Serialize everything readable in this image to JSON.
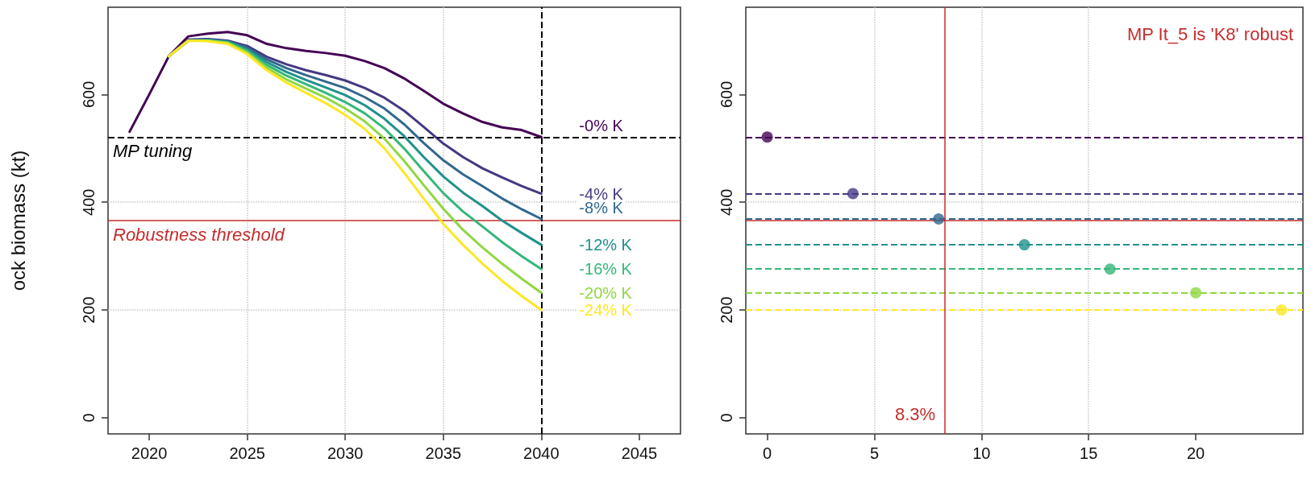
{
  "chart_data": [
    {
      "type": "line",
      "ylabel": "ock biomass (kt)",
      "x": [
        2019,
        2020,
        2021,
        2022,
        2023,
        2024,
        2025,
        2026,
        2027,
        2028,
        2029,
        2030,
        2031,
        2032,
        2033,
        2034,
        2035,
        2036,
        2037,
        2038,
        2039,
        2040
      ],
      "series": [
        {
          "name": "-0% K",
          "color": "#440154",
          "values": [
            531,
            600,
            671,
            708,
            713,
            716,
            710,
            694,
            686,
            681,
            677,
            672,
            662,
            649,
            630,
            607,
            583,
            565,
            549,
            539,
            534,
            521
          ]
        },
        {
          "name": "-4% K",
          "color": "#443983",
          "values": [
            null,
            null,
            671,
            702,
            703,
            700,
            690,
            670,
            656,
            645,
            636,
            626,
            612,
            594,
            570,
            540,
            509,
            484,
            463,
            446,
            430,
            416
          ]
        },
        {
          "name": "-8% K",
          "color": "#31688e",
          "values": [
            null,
            null,
            671,
            701,
            702,
            699,
            687,
            665,
            649,
            636,
            624,
            612,
            595,
            574,
            545,
            510,
            478,
            452,
            430,
            407,
            387,
            369
          ]
        },
        {
          "name": "-12% K",
          "color": "#21918c",
          "values": [
            null,
            null,
            671,
            700,
            701,
            698,
            684,
            660,
            642,
            627,
            613,
            599,
            580,
            555,
            523,
            484,
            448,
            418,
            393,
            366,
            343,
            321
          ]
        },
        {
          "name": "-16% K",
          "color": "#35b779",
          "values": [
            null,
            null,
            671,
            700,
            700,
            697,
            681,
            655,
            635,
            619,
            603,
            586,
            565,
            537,
            500,
            458,
            417,
            383,
            355,
            326,
            300,
            276
          ]
        },
        {
          "name": "-20% K",
          "color": "#90d743",
          "values": [
            null,
            null,
            671,
            700,
            700,
            696,
            678,
            650,
            628,
            611,
            594,
            574,
            550,
            518,
            477,
            432,
            388,
            349,
            316,
            286,
            258,
            232
          ]
        },
        {
          "name": "-24% K",
          "color": "#fde725",
          "values": [
            null,
            null,
            671,
            700,
            699,
            694,
            675,
            645,
            622,
            603,
            584,
            562,
            536,
            500,
            455,
            407,
            360,
            321,
            286,
            254,
            226,
            200
          ]
        }
      ],
      "xlim": [
        2017.9,
        2047.1
      ],
      "xticks": [
        2020,
        2025,
        2030,
        2035,
        2040,
        2045
      ],
      "ylim": [
        -30,
        762
      ],
      "yticks": [
        0,
        200,
        400,
        600
      ],
      "grid": true,
      "marker": "none",
      "line_style": "solid",
      "ref_lines": [
        {
          "axis": "y",
          "value": 521,
          "label": "MP tuning",
          "color": "#000000",
          "line_style": "dashed"
        },
        {
          "axis": "y",
          "value": 366,
          "label": "Robustness threshold",
          "color": "#c62d2d",
          "line_style": "solid"
        },
        {
          "axis": "x",
          "value": 2040,
          "color": "#000000",
          "line_style": "dashed"
        }
      ]
    },
    {
      "type": "scatter",
      "x": [
        0,
        4,
        8,
        12,
        16,
        20,
        24
      ],
      "values": [
        521,
        416,
        369,
        321,
        276,
        232,
        200
      ],
      "colors": [
        "#440154",
        "#443983",
        "#31688e",
        "#21918c",
        "#35b779",
        "#90d743",
        "#fde725"
      ],
      "xlim": [
        -1,
        25
      ],
      "xticks": [
        0,
        5,
        10,
        15,
        20
      ],
      "ylim": [
        -30,
        762
      ],
      "yticks": [
        0,
        200,
        400,
        600
      ],
      "grid": true,
      "marker": "circle",
      "annotations": [
        "MP It_5 is 'K8' robust"
      ],
      "ref_lines": [
        {
          "axis": "y",
          "value": 521,
          "color": "#440154",
          "line_style": "dashed"
        },
        {
          "axis": "y",
          "value": 416,
          "color": "#443983",
          "line_style": "dashed"
        },
        {
          "axis": "y",
          "value": 369,
          "color": "#31688e",
          "line_style": "dashed"
        },
        {
          "axis": "y",
          "value": 321,
          "color": "#21918c",
          "line_style": "dashed"
        },
        {
          "axis": "y",
          "value": 276,
          "color": "#35b779",
          "line_style": "dashed"
        },
        {
          "axis": "y",
          "value": 232,
          "color": "#90d743",
          "line_style": "dashed"
        },
        {
          "axis": "y",
          "value": 200,
          "color": "#fde725",
          "line_style": "dashed"
        },
        {
          "axis": "y",
          "value": 366,
          "color": "#c62d2d",
          "line_style": "solid"
        },
        {
          "axis": "x",
          "value": 8.3,
          "label": "8.3%",
          "color": "#c62d2d",
          "line_style": "solid"
        }
      ]
    }
  ]
}
